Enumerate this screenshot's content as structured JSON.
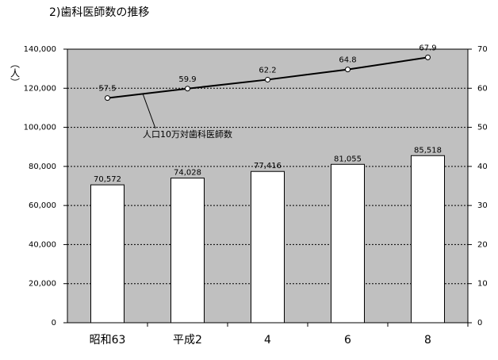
{
  "chart_data": {
    "type": "bar",
    "title": "2)歯科医師数の推移",
    "y_label": "（人）",
    "categories": [
      "昭和63",
      "平成2",
      "4",
      "6",
      "8"
    ],
    "series": [
      {
        "color": "#ffffff",
        "values": [
          70572,
          74028,
          77416,
          81055,
          85518
        ],
        "value_labels": [
          "70,572",
          "74,028",
          "77,416",
          "81,055",
          "85,518"
        ]
      },
      {
        "name": "人口10万対歯科医師数",
        "type": "line",
        "axis": "y2",
        "color": "#000000",
        "values": [
          57.5,
          59.9,
          62.2,
          64.8,
          67.9
        ]
      }
    ],
    "ylim": [
      0,
      140000
    ],
    "yticks": [
      0,
      {
        "value": 20000,
        "label": "20,000"
      },
      {
        "value": 40000,
        "label": "40,000"
      },
      {
        "value": 60000,
        "label": "60,000"
      },
      {
        "value": 80000,
        "label": "80,000"
      },
      {
        "value": 100000,
        "label": "100,000"
      },
      {
        "value": 120000,
        "label": "120,000"
      },
      {
        "value": 140000,
        "label": "140,000"
      }
    ],
    "y2lim": [
      0,
      70
    ],
    "y2ticks": [
      0,
      10,
      20,
      30,
      40,
      50,
      60,
      70
    ],
    "grid": true,
    "plot_background": "#c0c0c0"
  }
}
